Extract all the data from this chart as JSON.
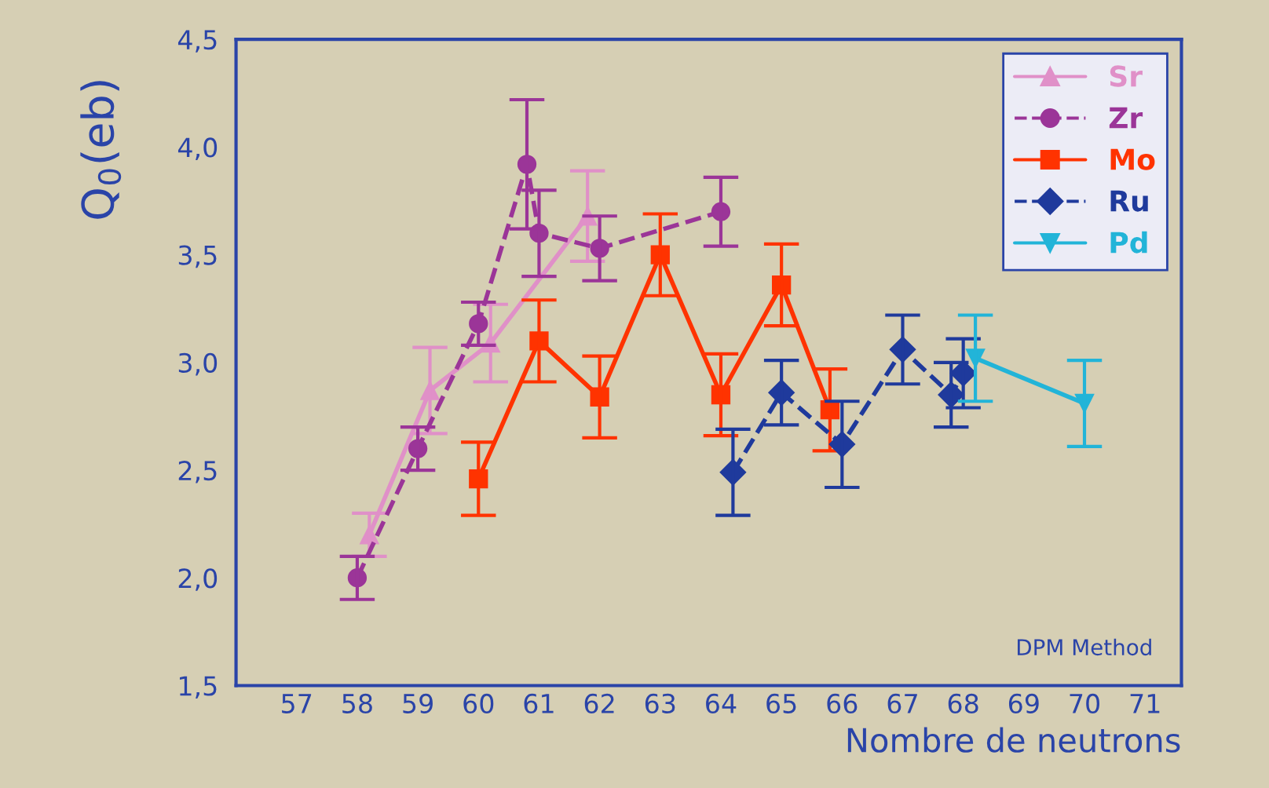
{
  "chart_data": {
    "type": "line",
    "xlabel": "Nombre de neutrons",
    "ylabel": "Q$_{0}$(eb)",
    "xlim": [
      56,
      71.6
    ],
    "ylim": [
      1.5,
      4.5
    ],
    "xticks": [
      57,
      58,
      59,
      60,
      61,
      62,
      63,
      64,
      65,
      66,
      67,
      68,
      69,
      70,
      71
    ],
    "yticks": [
      {
        "value": 1.5,
        "label": "1,5"
      },
      {
        "value": 2.0,
        "label": "2,0"
      },
      {
        "value": 2.5,
        "label": "2,5"
      },
      {
        "value": 3.0,
        "label": "3,0"
      },
      {
        "value": 3.5,
        "label": "3,5"
      },
      {
        "value": 4.0,
        "label": "4,0"
      },
      {
        "value": 4.5,
        "label": "4,5"
      }
    ],
    "grid": false,
    "legend": "top right",
    "annotations": [
      "DPM Method"
    ],
    "series": [
      {
        "name": "Sr",
        "color": "#e090c8",
        "marker": "triangle",
        "line_style": "solid",
        "x": [
          58.2,
          59.2,
          60.2,
          61.8
        ],
        "values": [
          2.2,
          2.87,
          3.09,
          3.68
        ],
        "errors": [
          0.1,
          0.2,
          0.18,
          0.21
        ]
      },
      {
        "name": "Zr",
        "color": "#9b3598",
        "marker": "circle",
        "line_style": "dashed",
        "x": [
          58.0,
          59.0,
          60.0,
          60.8,
          61.0,
          62.0,
          64.0
        ],
        "values": [
          2.0,
          2.6,
          3.18,
          3.92,
          3.6,
          3.53,
          3.7
        ],
        "errors": [
          0.1,
          0.1,
          0.1,
          0.3,
          0.2,
          0.15,
          0.16
        ]
      },
      {
        "name": "Mo",
        "color": "#ff3300",
        "marker": "square",
        "line_style": "solid",
        "x": [
          60.0,
          61.0,
          62.0,
          63.0,
          64.0,
          65.0,
          65.8
        ],
        "values": [
          2.46,
          3.1,
          2.84,
          3.5,
          2.85,
          3.36,
          2.78
        ],
        "errors": [
          0.17,
          0.19,
          0.19,
          0.19,
          0.19,
          0.19,
          0.19
        ]
      },
      {
        "name": "Ru",
        "color": "#1f3a9c",
        "marker": "diamond",
        "line_style": "dashed",
        "x": [
          64.2,
          65.0,
          66.0,
          67.0,
          67.8,
          68.0
        ],
        "values": [
          2.49,
          2.86,
          2.62,
          3.06,
          2.85,
          2.95
        ],
        "errors": [
          0.2,
          0.15,
          0.2,
          0.16,
          0.15,
          0.16
        ]
      },
      {
        "name": "Pd",
        "color": "#22b4d8",
        "marker": "triangle_down",
        "line_style": "solid",
        "x": [
          68.2,
          70.0
        ],
        "values": [
          3.02,
          2.81
        ],
        "errors": [
          0.2,
          0.2
        ]
      }
    ]
  }
}
